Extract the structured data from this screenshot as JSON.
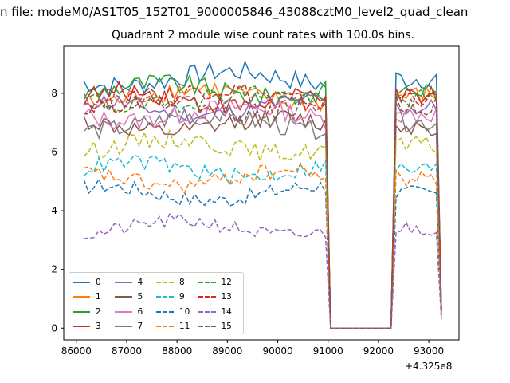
{
  "suptitle": "n file: modeM0/AS1T05_152T01_9000005846_43088cztM0_level2_quad_clean",
  "chart_data": {
    "type": "line",
    "title": "Quadrant 2 module wise count rates with 100.0s bins.",
    "x_offset_label": "+4.325e8",
    "xlim": [
      85750,
      93600
    ],
    "ylim": [
      -0.4,
      9.6
    ],
    "xticks": [
      86000,
      87000,
      88000,
      89000,
      90000,
      91000,
      92000,
      93000
    ],
    "yticks": [
      0,
      2,
      4,
      6,
      8
    ],
    "xtick_labels": [
      "86000",
      "87000",
      "88000",
      "89000",
      "90000",
      "91000",
      "92000",
      "93000"
    ],
    "ytick_labels": [
      "0",
      "2",
      "4",
      "6",
      "8"
    ],
    "grid": false,
    "legend_placement": "lower-left",
    "segment1": {
      "x_start": 86150,
      "x_end": 90950,
      "step": 100
    },
    "gap": {
      "x_start": 91050,
      "x_end": 92250,
      "y": 0
    },
    "segment2": {
      "x_start": 92350,
      "x_end": 93150,
      "step": 100
    },
    "series": [
      {
        "name": "0",
        "style": "solid",
        "color": "#1f77b4",
        "level": 8.5
      },
      {
        "name": "1",
        "style": "solid",
        "color": "#ff7f0e",
        "level": 7.9
      },
      {
        "name": "2",
        "style": "solid",
        "color": "#2ca02c",
        "level": 8.1
      },
      {
        "name": "3",
        "style": "solid",
        "color": "#d62728",
        "level": 7.8
      },
      {
        "name": "4",
        "style": "solid",
        "color": "#9467bd",
        "level": 7.5
      },
      {
        "name": "5",
        "style": "solid",
        "color": "#8c564b",
        "level": 6.9
      },
      {
        "name": "6",
        "style": "solid",
        "color": "#e377c2",
        "level": 7.3
      },
      {
        "name": "7",
        "style": "solid",
        "color": "#7f7f7f",
        "level": 7.0
      },
      {
        "name": "8",
        "style": "dashed",
        "color": "#bcbd22",
        "level": 6.2
      },
      {
        "name": "9",
        "style": "dashed",
        "color": "#17becf",
        "level": 5.4
      },
      {
        "name": "10",
        "style": "dashed",
        "color": "#1f77b4",
        "level": 4.6
      },
      {
        "name": "11",
        "style": "dashed",
        "color": "#ff7f0e",
        "level": 5.1
      },
      {
        "name": "12",
        "style": "dashed",
        "color": "#2ca02c",
        "level": 7.8
      },
      {
        "name": "13",
        "style": "dashed",
        "color": "#d62728",
        "level": 7.9
      },
      {
        "name": "14",
        "style": "dashed",
        "color": "#9467bd",
        "level": 3.4
      },
      {
        "name": "15",
        "style": "dashed",
        "color": "#8c564b",
        "level": 7.6
      }
    ]
  }
}
